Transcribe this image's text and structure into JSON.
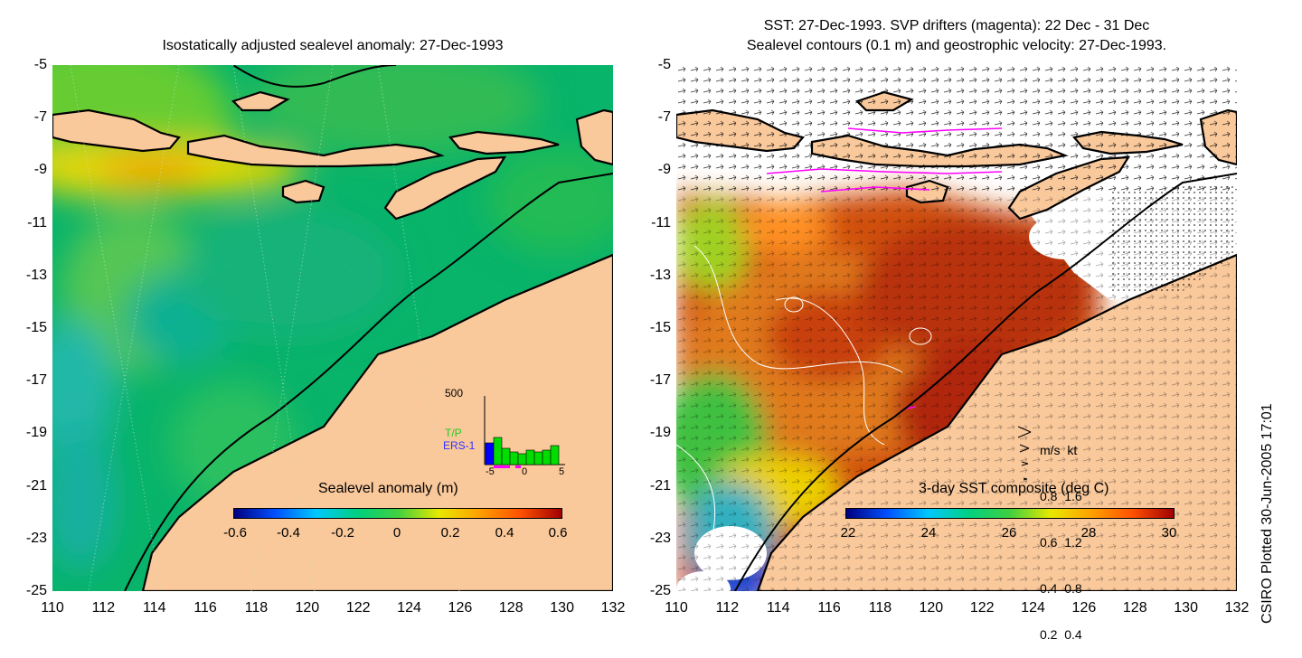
{
  "left_panel": {
    "title": "Isostatically adjusted sealevel anomaly: 27-Dec-1993",
    "colorbar": {
      "title": "Sealevel anomaly (m)",
      "labels": [
        "-0.6",
        "-0.4",
        "-0.2",
        "0",
        "0.2",
        "0.4",
        "0.6"
      ]
    },
    "histogram": {
      "ymax_label": "500",
      "x_labels": [
        "-5",
        "0",
        "5"
      ],
      "legend_tp": "T/P",
      "legend_ers": "ERS-1",
      "colors": {
        "tp": "#22cc22",
        "ers": "#3333ff",
        "bar_green": "#00dd00",
        "bar_blue": "#0000ff"
      }
    }
  },
  "right_panel": {
    "title_line1": "SST: 27-Dec-1993. SVP drifters (magenta): 22 Dec - 31 Dec",
    "title_line2": "Sealevel contours (0.1 m) and geostrophic velocity: 27-Dec-1993.",
    "colorbar": {
      "title": "3-day SST composite (deg C)",
      "labels": [
        "22",
        "24",
        "26",
        "28",
        "30"
      ]
    },
    "velocity_legend": {
      "header": "m/s  kt",
      "rows": [
        "0.8  1.6",
        "0.6  1.2",
        "0.4  0.8",
        "0.2  0.4"
      ]
    }
  },
  "axes": {
    "y_ticks": [
      "-5",
      "-7",
      "-9",
      "-11",
      "-13",
      "-15",
      "-17",
      "-19",
      "-21",
      "-23",
      "-25"
    ],
    "x_ticks": [
      "110",
      "112",
      "114",
      "116",
      "118",
      "120",
      "122",
      "124",
      "126",
      "128",
      "130",
      "132"
    ],
    "lon_range": [
      110,
      132
    ],
    "lat_range": [
      -25,
      -5
    ]
  },
  "credit": "CSIRO Plotted 30-Jun-2005 17:01",
  "colors": {
    "land": "#f9c89b",
    "sea_base": "#00bb66",
    "no_data": "#ffffff",
    "coast": "#000000",
    "sst_hot": "#c0320a",
    "sst_cold": "#2244cc"
  }
}
